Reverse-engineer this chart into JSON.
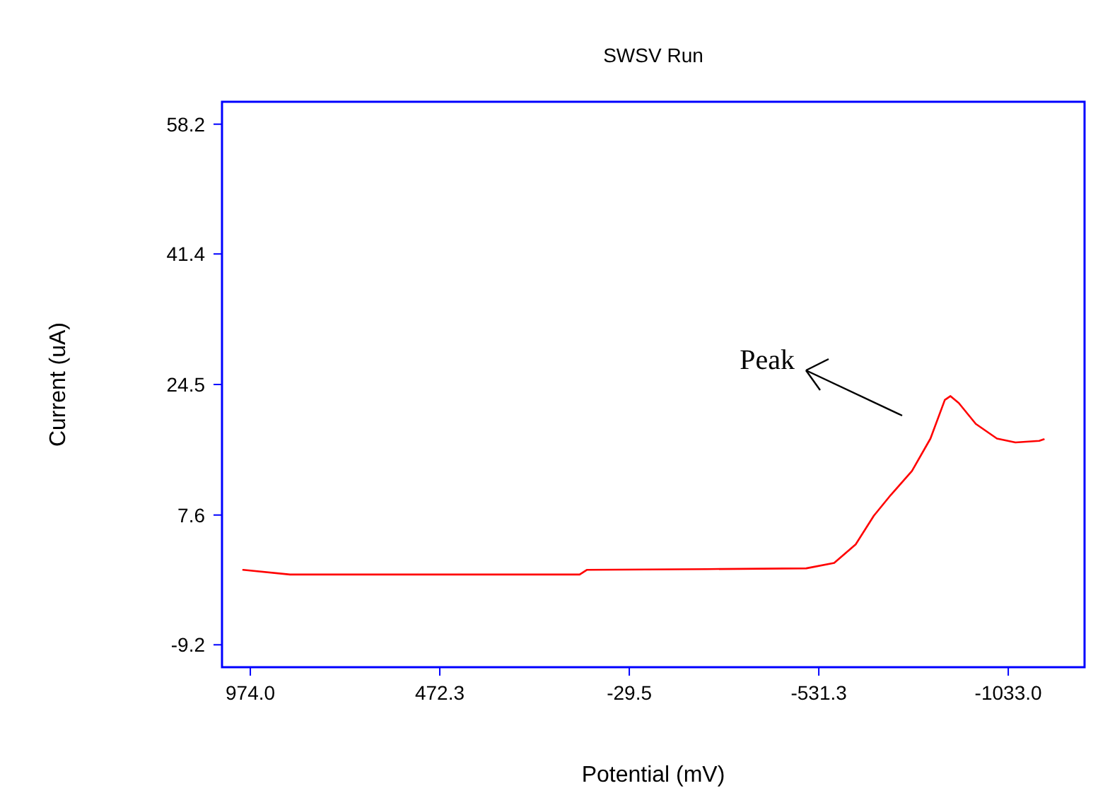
{
  "chart_data": {
    "type": "line",
    "title": "SWSV Run",
    "xlabel": "Potential (mV)",
    "ylabel": "Current (uA)",
    "x": [
      993,
      869,
      513,
      102,
      83,
      -235,
      -498,
      -572,
      -629,
      -677,
      -722,
      -778,
      -827,
      -865,
      -880,
      -902,
      -947,
      -1003,
      -1052,
      -1115,
      -1127
    ],
    "series": [
      {
        "color": "#ff0000",
        "values": [
          0.5,
          -0.1,
          -0.1,
          -0.1,
          0.5,
          0.6,
          0.7,
          1.4,
          3.8,
          7.5,
          10.2,
          13.3,
          17.5,
          22.5,
          23.0,
          22.1,
          19.4,
          17.5,
          17.0,
          17.2,
          17.4
        ]
      }
    ],
    "xlim": [
      1049,
      -1235
    ],
    "xticks": [
      {
        "value": 974,
        "label": "974.0"
      },
      {
        "value": 472.3,
        "label": "472.3"
      },
      {
        "value": -29.5,
        "label": "-29.5"
      },
      {
        "value": -531.3,
        "label": "-531.3"
      },
      {
        "value": -1033,
        "label": "-1033.0"
      }
    ],
    "ylim": [
      -12.1,
      61.1
    ],
    "yticks": [
      58.2,
      41.4,
      24.5,
      7.6,
      -9.2
    ],
    "grid": false,
    "marker": "none",
    "line_style": "solid",
    "annotations": [
      "Peak"
    ]
  }
}
